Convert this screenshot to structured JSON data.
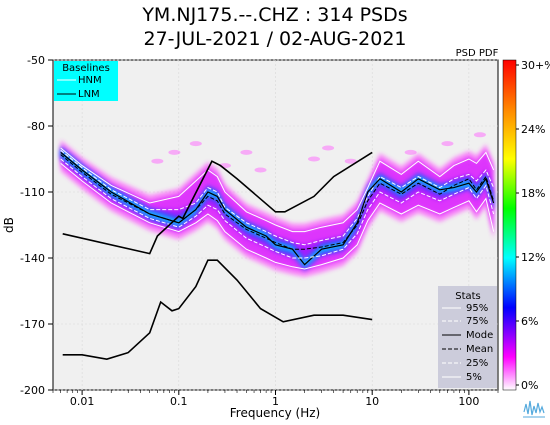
{
  "header": {
    "title_line1": "YM.NJ175.--.CHZ : 314 PSDs",
    "title_line2": "27-JUL-2021 / 02-AUG-2021"
  },
  "chart_data": {
    "type": "line",
    "x_scale": "log",
    "xlim": [
      0.005,
      200
    ],
    "ylim": [
      -200,
      -50
    ],
    "xlabel": "Frequency (Hz)",
    "ylabel": "dB",
    "x_ticks": [
      {
        "value": 0.01,
        "label": "0.01"
      },
      {
        "value": 0.1,
        "label": "0.1"
      },
      {
        "value": 1,
        "label": "1"
      },
      {
        "value": 10,
        "label": "10"
      },
      {
        "value": 100,
        "label": "100"
      }
    ],
    "y_ticks": [
      -50,
      -80,
      -110,
      -140,
      -170,
      -200
    ],
    "grid": true,
    "colorbar": {
      "title": "PSD PDF",
      "ticks": [
        "30+%",
        "24%",
        "18%",
        "12%",
        "6%",
        "0%"
      ],
      "colors": [
        "#ff0000",
        "#ff8800",
        "#ffff00",
        "#00ff00",
        "#00ffff",
        "#0000ff",
        "#ff00ff",
        "#ffffff"
      ]
    },
    "baselines": {
      "title": "Baselines",
      "entries": [
        "HNM",
        "LNM"
      ],
      "box_color": "#00ffff",
      "hnm": {
        "x": [
          0.0063,
          0.05,
          0.06,
          0.1,
          0.11,
          0.22,
          0.27,
          0.4,
          1.0,
          1.25,
          2.5,
          4.0,
          10.0
        ],
        "y": [
          -129,
          -138,
          -130,
          -121,
          -122,
          -96,
          -98,
          -104,
          -119,
          -119,
          -112,
          -103,
          -92
        ]
      },
      "lnm": {
        "x": [
          0.0063,
          0.01,
          0.018,
          0.03,
          0.05,
          0.065,
          0.085,
          0.1,
          0.15,
          0.2,
          0.25,
          0.4,
          0.7,
          1.2,
          2.5,
          5.0,
          10.0
        ],
        "y": [
          -184,
          -184,
          -186,
          -183,
          -174,
          -160,
          -164,
          -163,
          -153,
          -141,
          -141,
          -150,
          -163,
          -169,
          -166,
          -166,
          -168
        ]
      }
    },
    "stats": {
      "title": "Stats",
      "entries": [
        "95%",
        "75%",
        "Mode",
        "Mean",
        "25%",
        "5%"
      ],
      "freq": [
        0.006,
        0.01,
        0.02,
        0.05,
        0.1,
        0.15,
        0.2,
        0.25,
        0.3,
        0.5,
        0.8,
        1.0,
        1.5,
        2.0,
        3.0,
        5.0,
        7.0,
        9.0,
        12.0,
        20.0,
        30.0,
        50.0,
        70.0,
        100.0,
        120.0,
        150.0,
        180.0
      ],
      "p95": [
        -90,
        -98,
        -107,
        -115,
        -112,
        -105,
        -100,
        -103,
        -110,
        -119,
        -123,
        -125,
        -128,
        -128,
        -126,
        -124,
        -118,
        -108,
        -96,
        -102,
        -96,
        -103,
        -98,
        -95,
        -97,
        -92,
        -100
      ],
      "p75": [
        -91,
        -99,
        -109,
        -118,
        -118,
        -115,
        -108,
        -110,
        -117,
        -124,
        -128,
        -130,
        -133,
        -134,
        -132,
        -130,
        -122,
        -112,
        -103,
        -108,
        -103,
        -108,
        -104,
        -102,
        -105,
        -100,
        -108
      ],
      "mode": [
        -92,
        -100,
        -110,
        -120,
        -124,
        -118,
        -110,
        -112,
        -118,
        -126,
        -130,
        -134,
        -136,
        -143,
        -136,
        -134,
        -124,
        -110,
        -104,
        -110,
        -104,
        -109,
        -108,
        -106,
        -110,
        -104,
        -115
      ],
      "mean": [
        -93,
        -101,
        -111,
        -120,
        -124,
        -118,
        -112,
        -114,
        -120,
        -127,
        -131,
        -133,
        -136,
        -136,
        -135,
        -133,
        -125,
        -114,
        -106,
        -111,
        -106,
        -111,
        -107,
        -104,
        -109,
        -103,
        -114
      ],
      "p25": [
        -95,
        -103,
        -113,
        -122,
        -126,
        -121,
        -116,
        -118,
        -123,
        -131,
        -135,
        -137,
        -140,
        -140,
        -139,
        -136,
        -129,
        -118,
        -110,
        -115,
        -110,
        -114,
        -111,
        -108,
        -113,
        -107,
        -120
      ],
      "p5": [
        -97,
        -105,
        -115,
        -124,
        -128,
        -124,
        -120,
        -123,
        -128,
        -136,
        -140,
        -142,
        -144,
        -145,
        -143,
        -140,
        -134,
        -123,
        -115,
        -120,
        -116,
        -120,
        -117,
        -114,
        -119,
        -113,
        -128
      ]
    }
  }
}
